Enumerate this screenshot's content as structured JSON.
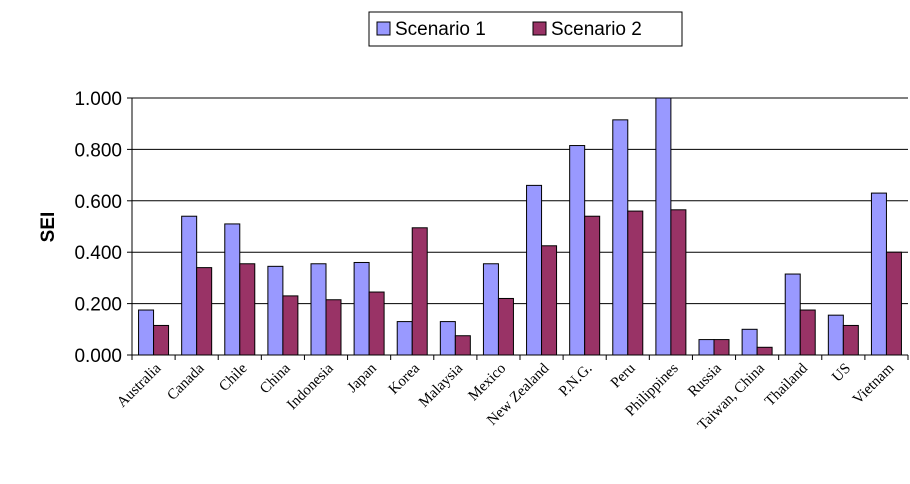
{
  "chart_data": {
    "type": "bar",
    "title": "",
    "xlabel": "",
    "ylabel": "SEI",
    "ylim": [
      0,
      1.0
    ],
    "yticks": [
      "0.000",
      "0.200",
      "0.400",
      "0.600",
      "0.800",
      "1.000"
    ],
    "grid": true,
    "legend": "top-center",
    "categories": [
      "Australia",
      "Canada",
      "Chile",
      "China",
      "Indonesia",
      "Japan",
      "Korea",
      "Malaysia",
      "Mexico",
      "New Zealand",
      "P.N.G.",
      "Peru",
      "Philippines",
      "Russia",
      "Taiwan, China",
      "Thailand",
      "US",
      "Vietnam"
    ],
    "series": [
      {
        "name": "Scenario 1",
        "color": "#9999FF",
        "values": [
          0.175,
          0.54,
          0.51,
          0.345,
          0.355,
          0.36,
          0.13,
          0.13,
          0.355,
          0.66,
          0.815,
          0.915,
          1.0,
          0.06,
          0.1,
          0.315,
          0.155,
          0.63
        ]
      },
      {
        "name": "Scenario 2",
        "color": "#993366",
        "values": [
          0.115,
          0.34,
          0.355,
          0.23,
          0.215,
          0.245,
          0.495,
          0.075,
          0.22,
          0.425,
          0.54,
          0.56,
          0.565,
          0.06,
          0.03,
          0.175,
          0.115,
          0.4
        ]
      }
    ]
  }
}
